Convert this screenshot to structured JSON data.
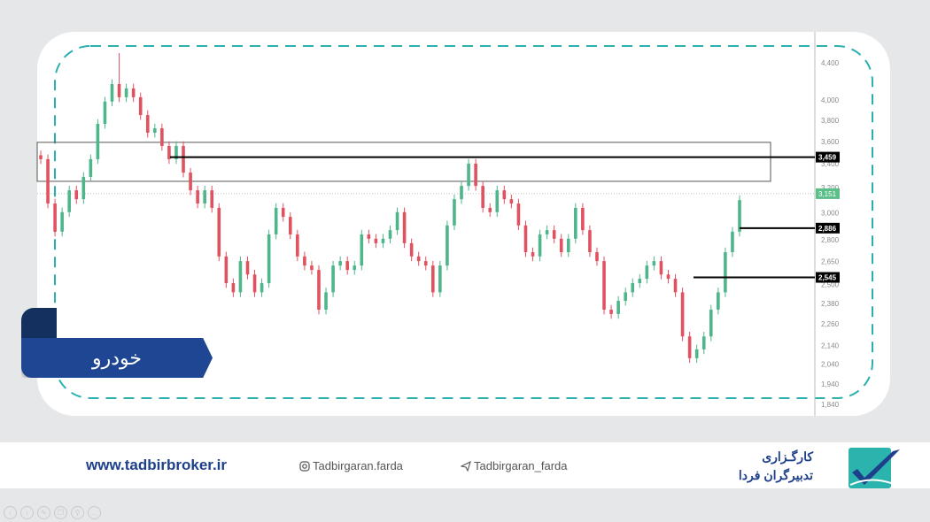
{
  "chart_data": {
    "type": "candlestick",
    "title": "",
    "y_scale": "log",
    "ylim": [
      1800,
      4600
    ],
    "y_ticks": [
      "4,400",
      "4,000",
      "3,800",
      "3,600",
      "3,400",
      "3,200",
      "3,000",
      "2,800",
      "2,650",
      "2,500",
      "2,380",
      "2,260",
      "2,140",
      "2,040",
      "1,940",
      "1,840"
    ],
    "y_tick_values": [
      4400,
      4000,
      3800,
      3600,
      3400,
      3200,
      3000,
      2800,
      2650,
      2500,
      2380,
      2260,
      2140,
      2040,
      1940,
      1840
    ],
    "closes": [
      3441,
      3073,
      2860,
      3006,
      3178,
      3107,
      3289,
      3441,
      3765,
      3986,
      4168,
      4030,
      4122,
      4030,
      3851,
      3681,
      3723,
      3559,
      3441,
      3559,
      3325,
      3178,
      3073,
      3178,
      3039,
      2685,
      2508,
      2450,
      2653,
      2564,
      2450,
      2508,
      2840,
      3039,
      2970,
      2840,
      2685,
      2623,
      2594,
      2344,
      2450,
      2623,
      2653,
      2594,
      2623,
      2840,
      2809,
      2777,
      2809,
      2871,
      3006,
      2777,
      2685,
      2653,
      2623,
      2450,
      2623,
      2906,
      3107,
      3214,
      3402,
      3214,
      3039,
      3006,
      3178,
      3107,
      3073,
      2906,
      2714,
      2685,
      2840,
      2871,
      2809,
      2714,
      2809,
      3039,
      2871,
      2714,
      2653,
      2344,
      2318,
      2397,
      2450,
      2508,
      2536,
      2623,
      2653,
      2564,
      2536,
      2450,
      2189,
      2071,
      2118,
      2189,
      2344,
      2450,
      2714,
      2860,
      3100
    ],
    "peak_high": 4510,
    "last_price": {
      "value": 3151,
      "label": "3,151"
    },
    "levels": [
      {
        "value": 3459,
        "label": "3,459"
      },
      {
        "value": 2886,
        "label": "2,886"
      },
      {
        "value": 2545,
        "label": "2,545"
      }
    ],
    "zone": [
      3252,
      3592
    ],
    "colors": {
      "up": "#4fb58a",
      "down": "#e0525f",
      "last": "#5cbf8a",
      "frame": "#2bb0b0"
    }
  },
  "banner": {
    "label": "خودرو"
  },
  "footer": {
    "website": "www.tadbirbroker.ir",
    "instagram": "Tadbirgaran.farda",
    "telegram": "Tadbirgaran_farda",
    "brand_line1": "کارگـزاری",
    "brand_line2": "تدبیرگران فردا"
  },
  "controls": [
    "prev",
    "next",
    "pen",
    "copy",
    "zoom",
    "more"
  ]
}
